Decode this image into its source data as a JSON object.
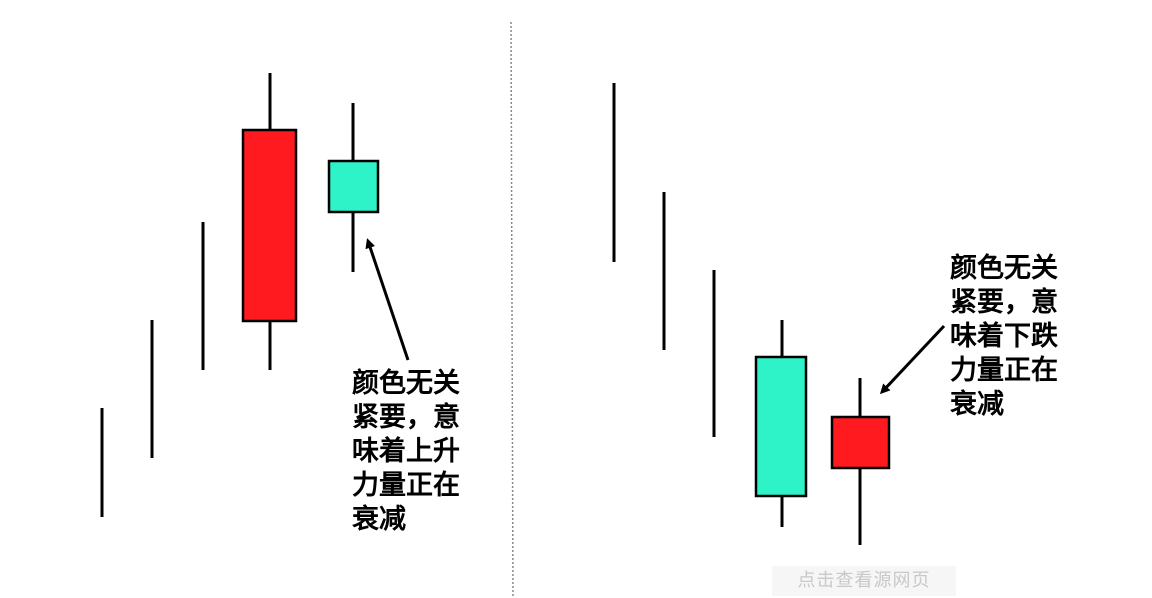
{
  "colors": {
    "bullish_body": "#ff1a1f",
    "bearish_body": "#2ef2c8",
    "line": "#000000",
    "divider": "#888888"
  },
  "left_panel": {
    "annotation": [
      "颜色无关",
      "紧要，意",
      "味着上升",
      "力量正在",
      "衰减"
    ]
  },
  "right_panel": {
    "annotation": [
      "颜色无关",
      "紧要，意",
      "味着下跌",
      "力量正在",
      "衰减"
    ]
  },
  "watermark": {
    "text": "点击查看源网页"
  }
}
